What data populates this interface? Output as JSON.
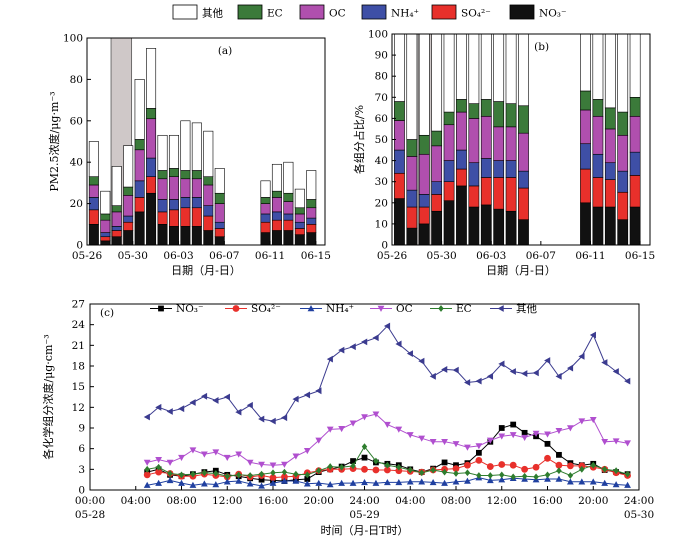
{
  "legend_top": [
    {
      "key": "other",
      "label": "其他",
      "color": "#ffffff"
    },
    {
      "key": "ec",
      "label": "EC",
      "color": "#3b7a3a"
    },
    {
      "key": "oc",
      "label": "OC",
      "color": "#b04fae"
    },
    {
      "key": "nh4",
      "label": "NH₄⁺",
      "color": "#3e4fa6"
    },
    {
      "key": "so4",
      "label": "SO₄²⁻",
      "color": "#e8302b"
    },
    {
      "key": "no3",
      "label": "NO₃⁻",
      "color": "#111111"
    }
  ],
  "chart_data": [
    {
      "id": "a",
      "type": "bar",
      "stacked": true,
      "panel_label": "(a)",
      "ylabel": "PM2.5浓度/μg·m⁻³",
      "xlabel": "日期（月-日）",
      "ylim": [
        0,
        100
      ],
      "yticks": [
        0,
        20,
        40,
        60,
        80,
        100
      ],
      "xlim": [
        0,
        20.8
      ],
      "xticks": [
        {
          "pos": 0,
          "label": "05-26"
        },
        {
          "pos": 4,
          "label": "05-30"
        },
        {
          "pos": 8,
          "label": "06-03"
        },
        {
          "pos": 12,
          "label": "06-07"
        },
        {
          "pos": 16,
          "label": "06-11"
        },
        {
          "pos": 20,
          "label": "06-15"
        }
      ],
      "shaded_span": [
        2.1,
        3.9
      ],
      "stack_order": [
        "no3",
        "so4",
        "nh4",
        "oc",
        "ec",
        "other"
      ],
      "bars": [
        {
          "x": 0.6,
          "no3": 10,
          "so4": 7,
          "nh4": 6,
          "oc": 6,
          "ec": 4,
          "other": 17
        },
        {
          "x": 1.6,
          "no3": 2,
          "so4": 2,
          "nh4": 2,
          "oc": 6,
          "ec": 3,
          "other": 11
        },
        {
          "x": 2.6,
          "no3": 4,
          "so4": 3,
          "nh4": 2,
          "oc": 7,
          "ec": 3,
          "other": 19
        },
        {
          "x": 3.6,
          "no3": 7,
          "so4": 4,
          "nh4": 3,
          "oc": 10,
          "ec": 4,
          "other": 20
        },
        {
          "x": 4.6,
          "no3": 16,
          "so4": 7,
          "nh4": 8,
          "oc": 15,
          "ec": 5,
          "other": 29
        },
        {
          "x": 5.6,
          "no3": 25,
          "so4": 8,
          "nh4": 9,
          "oc": 19,
          "ec": 5,
          "other": 29
        },
        {
          "x": 6.6,
          "no3": 10,
          "so4": 6,
          "nh4": 6,
          "oc": 10,
          "ec": 4,
          "other": 17
        },
        {
          "x": 7.6,
          "no3": 9,
          "so4": 8,
          "nh4": 5,
          "oc": 11,
          "ec": 4,
          "other": 16
        },
        {
          "x": 8.6,
          "no3": 9,
          "so4": 9,
          "nh4": 5,
          "oc": 9,
          "ec": 4,
          "other": 24
        },
        {
          "x": 9.6,
          "no3": 9,
          "so4": 9,
          "nh4": 5,
          "oc": 9,
          "ec": 4,
          "other": 23
        },
        {
          "x": 10.6,
          "no3": 7,
          "so4": 7,
          "nh4": 5,
          "oc": 10,
          "ec": 4,
          "other": 22
        },
        {
          "x": 11.6,
          "no3": 4,
          "so4": 4,
          "nh4": 3,
          "oc": 9,
          "ec": 5,
          "other": 12
        },
        {
          "x": 15.6,
          "no3": 6,
          "so4": 5,
          "nh4": 4,
          "oc": 5,
          "ec": 3,
          "other": 8
        },
        {
          "x": 16.6,
          "no3": 7,
          "so4": 5,
          "nh4": 4,
          "oc": 7,
          "ec": 3,
          "other": 13
        },
        {
          "x": 17.6,
          "no3": 7,
          "so4": 5,
          "nh4": 3,
          "oc": 6,
          "ec": 4,
          "other": 15
        },
        {
          "x": 18.6,
          "no3": 5,
          "so4": 3,
          "nh4": 3,
          "oc": 4,
          "ec": 3,
          "other": 9
        },
        {
          "x": 19.6,
          "no3": 6,
          "so4": 4,
          "nh4": 3,
          "oc": 5,
          "ec": 4,
          "other": 14
        }
      ]
    },
    {
      "id": "b",
      "type": "bar",
      "stacked": true,
      "panel_label": "(b)",
      "ylabel": "各组分占比/%",
      "xlabel": "日期（月-日）",
      "ylim": [
        0,
        100
      ],
      "yticks": [
        0,
        10,
        20,
        30,
        40,
        50,
        60,
        70,
        80,
        90,
        100
      ],
      "xlim": [
        0,
        20.8
      ],
      "xticks": [
        {
          "pos": 0,
          "label": "05-26"
        },
        {
          "pos": 4,
          "label": "05-30"
        },
        {
          "pos": 8,
          "label": "06-03"
        },
        {
          "pos": 12,
          "label": "06-07"
        },
        {
          "pos": 16,
          "label": "06-11"
        },
        {
          "pos": 20,
          "label": "06-15"
        }
      ],
      "shaded_span": [
        2.1,
        3.9
      ],
      "stack_order": [
        "no3",
        "so4",
        "nh4",
        "oc",
        "ec",
        "other"
      ],
      "bars": [
        {
          "x": 0.6,
          "no3": 22,
          "so4": 12,
          "nh4": 11,
          "oc": 14,
          "ec": 9,
          "other": 32
        },
        {
          "x": 1.6,
          "no3": 8,
          "so4": 10,
          "nh4": 8,
          "oc": 16,
          "ec": 8,
          "other": 50
        },
        {
          "x": 2.6,
          "no3": 10,
          "so4": 8,
          "nh4": 6,
          "oc": 19,
          "ec": 9,
          "other": 48
        },
        {
          "x": 3.6,
          "no3": 16,
          "so4": 8,
          "nh4": 6,
          "oc": 17,
          "ec": 7,
          "other": 46
        },
        {
          "x": 4.6,
          "no3": 21,
          "so4": 9,
          "nh4": 10,
          "oc": 17,
          "ec": 6,
          "other": 37
        },
        {
          "x": 5.6,
          "no3": 28,
          "so4": 8,
          "nh4": 9,
          "oc": 18,
          "ec": 6,
          "other": 31
        },
        {
          "x": 6.6,
          "no3": 18,
          "so4": 10,
          "nh4": 11,
          "oc": 21,
          "ec": 7,
          "other": 33
        },
        {
          "x": 7.6,
          "no3": 19,
          "so4": 13,
          "nh4": 9,
          "oc": 20,
          "ec": 8,
          "other": 31
        },
        {
          "x": 8.6,
          "no3": 17,
          "so4": 15,
          "nh4": 8,
          "oc": 16,
          "ec": 12,
          "other": 32
        },
        {
          "x": 9.6,
          "no3": 16,
          "so4": 16,
          "nh4": 8,
          "oc": 16,
          "ec": 11,
          "other": 33
        },
        {
          "x": 10.6,
          "no3": 12,
          "so4": 15,
          "nh4": 8,
          "oc": 18,
          "ec": 13,
          "other": 34
        },
        {
          "x": 15.6,
          "no3": 20,
          "so4": 16,
          "nh4": 12,
          "oc": 16,
          "ec": 9,
          "other": 27
        },
        {
          "x": 16.6,
          "no3": 18,
          "so4": 14,
          "nh4": 11,
          "oc": 18,
          "ec": 8,
          "other": 31
        },
        {
          "x": 17.6,
          "no3": 18,
          "so4": 13,
          "nh4": 8,
          "oc": 16,
          "ec": 10,
          "other": 35
        },
        {
          "x": 18.6,
          "no3": 12,
          "so4": 13,
          "nh4": 10,
          "oc": 17,
          "ec": 11,
          "other": 37
        },
        {
          "x": 19.6,
          "no3": 18,
          "so4": 15,
          "nh4": 11,
          "oc": 17,
          "ec": 9,
          "other": 30
        }
      ]
    },
    {
      "id": "c",
      "type": "line",
      "panel_label": "(c)",
      "ylabel": "各化学组分浓度/μg·cm⁻³",
      "xlabel": "时间（月-日T时）",
      "ylim": [
        0,
        27
      ],
      "yticks": [
        0,
        3,
        6,
        9,
        12,
        15,
        18,
        21,
        24,
        27
      ],
      "xlim": [
        0,
        48
      ],
      "xticks": [
        {
          "pos": 0,
          "label": "00:00"
        },
        {
          "pos": 4,
          "label": "04:00"
        },
        {
          "pos": 8,
          "label": "08:00"
        },
        {
          "pos": 12,
          "label": "12:00"
        },
        {
          "pos": 16,
          "label": "16:00"
        },
        {
          "pos": 20,
          "label": "20:00"
        },
        {
          "pos": 24,
          "label": "24:00"
        },
        {
          "pos": 28,
          "label": "04:00"
        },
        {
          "pos": 32,
          "label": "08:00"
        },
        {
          "pos": 36,
          "label": "12:00"
        },
        {
          "pos": 40,
          "label": "16:00"
        },
        {
          "pos": 44,
          "label": "20:00"
        },
        {
          "pos": 48,
          "label": "24:00"
        }
      ],
      "date_labels": [
        {
          "pos": 0,
          "label": "05-28"
        },
        {
          "pos": 24,
          "label": "05-29"
        },
        {
          "pos": 48,
          "label": "05-30"
        }
      ],
      "x": [
        5,
        6,
        7,
        8,
        9,
        10,
        11,
        12,
        13,
        14,
        15,
        16,
        17,
        18,
        19,
        20,
        21,
        22,
        23,
        24,
        25,
        26,
        27,
        28,
        29,
        30,
        31,
        32,
        33,
        34,
        35,
        36,
        37,
        38,
        39,
        40,
        41,
        42,
        43,
        44,
        45,
        46,
        47
      ],
      "series": [
        {
          "name": "NO₃⁻",
          "color": "#000000",
          "marker": "square",
          "values": [
            2.6,
            3.0,
            2.2,
            2.0,
            2.3,
            2.6,
            2.8,
            2.2,
            2.0,
            1.7,
            1.5,
            1.4,
            1.3,
            1.5,
            1.6,
            2.6,
            3.0,
            3.4,
            4.2,
            4.7,
            4.0,
            3.8,
            3.6,
            3.0,
            2.6,
            3.1,
            4.0,
            3.6,
            3.9,
            5.4,
            7.0,
            9.0,
            9.5,
            8.3,
            7.8,
            6.7,
            5.1,
            3.9,
            3.6,
            3.8,
            2.9,
            2.6,
            2.3
          ]
        },
        {
          "name": "SO₄²⁻",
          "color": "#e8302b",
          "marker": "circle",
          "values": [
            2.2,
            2.6,
            2.4,
            2.0,
            2.0,
            2.3,
            2.1,
            1.9,
            2.3,
            1.9,
            2.1,
            1.8,
            1.9,
            2.0,
            2.5,
            2.8,
            3.0,
            3.0,
            3.1,
            3.0,
            2.9,
            2.9,
            2.8,
            2.7,
            2.6,
            2.9,
            3.0,
            3.1,
            3.6,
            4.3,
            3.4,
            3.7,
            3.6,
            3.0,
            3.3,
            4.6,
            3.6,
            3.5,
            3.5,
            3.3,
            3.0,
            2.5,
            2.1
          ]
        },
        {
          "name": "NH₄⁺",
          "color": "#2040a0",
          "marker": "triangle",
          "values": [
            0.7,
            1.0,
            1.4,
            1.0,
            0.7,
            0.9,
            0.8,
            1.2,
            1.3,
            0.9,
            0.6,
            1.0,
            1.3,
            1.3,
            0.9,
            1.0,
            0.8,
            1.0,
            1.0,
            1.1,
            1.0,
            1.1,
            1.1,
            1.2,
            1.2,
            1.1,
            1.0,
            1.2,
            1.3,
            1.8,
            1.4,
            1.5,
            1.7,
            1.6,
            1.5,
            1.6,
            1.6,
            1.2,
            1.2,
            1.2,
            1.0,
            0.8,
            0.7
          ]
        },
        {
          "name": "OC",
          "color": "#b04fcf",
          "marker": "triangle-down",
          "values": [
            4.0,
            4.4,
            4.0,
            4.7,
            5.8,
            5.2,
            5.5,
            4.7,
            5.2,
            4.0,
            3.7,
            3.6,
            3.7,
            4.9,
            5.7,
            7.2,
            8.8,
            8.9,
            9.7,
            10.6,
            11.0,
            9.5,
            8.8,
            8.0,
            7.5,
            7.0,
            7.0,
            6.7,
            6.2,
            6.4,
            7.2,
            7.8,
            8.0,
            7.6,
            8.2,
            8.1,
            8.6,
            9.0,
            10.0,
            10.2,
            7.0,
            7.1,
            6.8
          ]
        },
        {
          "name": "EC",
          "color": "#2e7d2e",
          "marker": "diamond",
          "values": [
            3.0,
            3.3,
            2.4,
            2.2,
            2.3,
            2.5,
            2.4,
            2.0,
            2.2,
            2.1,
            2.3,
            2.5,
            2.6,
            2.3,
            2.2,
            2.8,
            3.4,
            3.3,
            3.5,
            6.3,
            4.2,
            3.6,
            3.3,
            2.9,
            2.5,
            2.9,
            2.6,
            2.4,
            2.5,
            2.1,
            2.1,
            2.2,
            1.9,
            2.0,
            1.9,
            2.2,
            2.8,
            2.1,
            3.0,
            3.6,
            3.0,
            2.8,
            2.3
          ]
        },
        {
          "name": "其他",
          "color": "#3b3b8f",
          "marker": "triangle-left",
          "values": [
            10.6,
            12.0,
            11.4,
            11.8,
            12.7,
            13.6,
            13.0,
            13.5,
            11.3,
            12.3,
            10.3,
            10.0,
            10.5,
            13.2,
            13.8,
            14.4,
            19.0,
            20.3,
            20.8,
            21.5,
            22.1,
            23.8,
            21.2,
            19.8,
            18.7,
            16.5,
            17.5,
            17.4,
            15.6,
            15.8,
            16.5,
            18.3,
            17.2,
            16.9,
            17.0,
            18.8,
            16.5,
            17.7,
            19.4,
            22.5,
            18.5,
            17.2,
            15.8
          ]
        }
      ]
    }
  ]
}
